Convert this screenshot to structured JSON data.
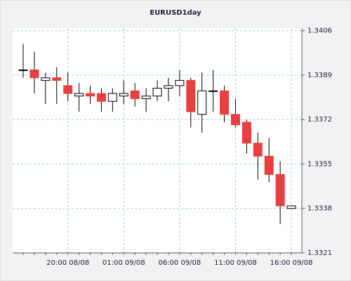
{
  "chart_data": {
    "type": "candlestick",
    "title": "EURUSD1day",
    "categories": [
      null,
      null,
      null,
      null,
      "20:00 08/08",
      null,
      null,
      null,
      null,
      "01:00 09/08",
      null,
      null,
      null,
      null,
      "06:00 09/08",
      null,
      null,
      null,
      null,
      "11:00 09/08",
      null,
      null,
      null,
      null,
      "16:00 09/08"
    ],
    "open": [
      1.3391,
      1.3391,
      1.3387,
      1.3388,
      1.3385,
      1.3381,
      1.3382,
      1.3382,
      1.3379,
      1.3381,
      1.3383,
      1.338,
      1.3381,
      1.3384,
      1.3385,
      1.3387,
      1.3374,
      1.3383,
      1.3383,
      1.3374,
      1.3371,
      1.3363,
      1.3358,
      1.3351,
      1.3338
    ],
    "high": [
      1.3401,
      1.3398,
      1.339,
      1.3392,
      1.339,
      1.3386,
      1.3385,
      1.3384,
      1.3384,
      1.3387,
      1.3386,
      1.3384,
      1.3387,
      1.3388,
      1.3391,
      1.3388,
      1.339,
      1.3391,
      1.3385,
      1.338,
      1.3372,
      1.3367,
      1.3365,
      1.3356,
      1.3339
    ],
    "low": [
      1.3388,
      1.3382,
      1.3378,
      1.3378,
      1.3379,
      1.3375,
      1.3378,
      1.3375,
      1.3375,
      1.3378,
      1.3377,
      1.3375,
      1.3379,
      1.3379,
      1.3381,
      1.3369,
      1.3367,
      1.3375,
      1.3371,
      1.3369,
      1.3359,
      1.3349,
      1.3348,
      1.3332,
      1.3338
    ],
    "close": [
      1.3391,
      1.3388,
      1.3388,
      1.3387,
      1.3382,
      1.3382,
      1.3381,
      1.3379,
      1.3382,
      1.3382,
      1.338,
      1.3381,
      1.3384,
      1.3385,
      1.3387,
      1.3375,
      1.3383,
      1.3383,
      1.3374,
      1.337,
      1.3363,
      1.3358,
      1.3351,
      1.3339,
      1.3339
    ],
    "up_color": "#ffffff",
    "down_color": "#e84040",
    "ylim": [
      1.3321,
      1.3407
    ],
    "yticks": [
      1.3321,
      1.3338,
      1.3355,
      1.3372,
      1.3389,
      1.3406
    ],
    "grid": true
  }
}
